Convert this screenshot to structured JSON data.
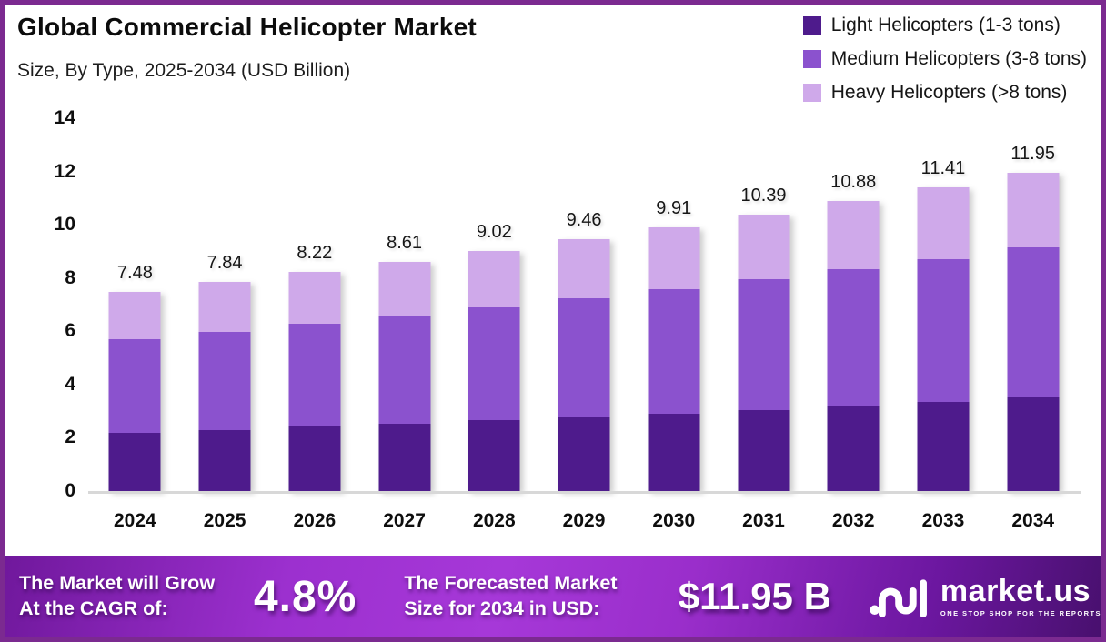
{
  "header": {
    "title": "Global Commercial Helicopter Market",
    "subtitle": "Size, By Type, 2025-2034 (USD Billion)"
  },
  "chart_data": {
    "type": "bar",
    "stacked": true,
    "title": "Global Commercial Helicopter Market Size, By Type, 2025-2034 (USD Billion)",
    "categories": [
      "2024",
      "2025",
      "2026",
      "2027",
      "2028",
      "2029",
      "2030",
      "2031",
      "2032",
      "2033",
      "2034"
    ],
    "series": [
      {
        "name": "Light Helicopters (1-3 tons)",
        "color": "#4E1B8C",
        "values": [
          2.19,
          2.3,
          2.41,
          2.53,
          2.65,
          2.78,
          2.91,
          3.05,
          3.2,
          3.35,
          3.52
        ]
      },
      {
        "name": "Medium Helicopters (3-8 tons)",
        "color": "#8B52CE",
        "values": [
          3.53,
          3.69,
          3.87,
          4.05,
          4.25,
          4.45,
          4.67,
          4.89,
          5.12,
          5.37,
          5.62
        ]
      },
      {
        "name": "Heavy Helicopters (>8 tons)",
        "color": "#CFA9EA",
        "values": [
          1.76,
          1.85,
          1.94,
          2.03,
          2.12,
          2.23,
          2.33,
          2.45,
          2.56,
          2.69,
          2.81
        ]
      }
    ],
    "totals": [
      7.48,
      7.84,
      8.22,
      8.61,
      9.02,
      9.46,
      9.91,
      10.39,
      10.88,
      11.41,
      11.95
    ],
    "total_labels": [
      "7.48",
      "7.84",
      "8.22",
      "8.61",
      "9.02",
      "9.46",
      "9.91",
      "10.39",
      "10.88",
      "11.41",
      "11.95"
    ],
    "ylim": [
      0,
      14
    ],
    "yticks": [
      0,
      2,
      4,
      6,
      8,
      10,
      12,
      14
    ],
    "grid": false,
    "legend_position": "top-right"
  },
  "footer": {
    "cagr_label_line1": "The Market will Grow",
    "cagr_label_line2": "At the CAGR of:",
    "cagr_value": "4.8%",
    "forecast_label_line1": "The Forecasted Market",
    "forecast_label_line2": "Size for 2034 in USD:",
    "forecast_value": "$11.95 B",
    "logo": {
      "brand": "market.us",
      "tagline": "ONE STOP SHOP FOR THE REPORTS"
    }
  },
  "colors": {
    "border": "#7B2A90",
    "baseline": "#D8D8D8",
    "bar_light_helicopters": "#4E1B8C",
    "bar_medium_helicopters": "#8B52CE",
    "bar_heavy_helicopters": "#CFA9EA",
    "footer_gradient_left": "#70189C",
    "footer_gradient_mid": "#A638D8",
    "footer_gradient_right": "#48106E"
  }
}
